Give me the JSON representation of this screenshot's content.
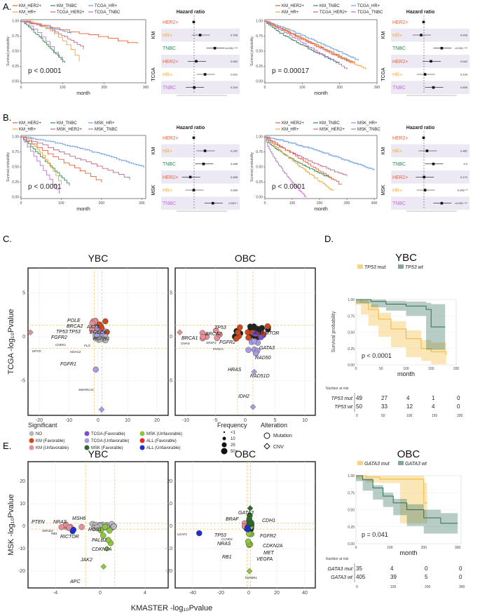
{
  "colors": {
    "HER2": "#e8603a",
    "HR": "#f0a73a",
    "TNBC": "#2e8b57",
    "TCGA_HR": "#6d9ee0",
    "TCGA_HER2": "#c06a8a",
    "TCGA_TNBC": "#c46fd1",
    "NO": "#b8b8b8",
    "KM_Fav": "#cc4a1d",
    "KM_Unfav": "#e58f96",
    "TCGA_Fav": "#7b4fcf",
    "TCGA_Unfav": "#a89be3",
    "MSK_Fav": "#2a6b2a",
    "MSK_Unfav": "#8dc63f",
    "ALL_Fav": "#e02b2b",
    "ALL_Unfav": "#1f2fd6",
    "mut": "#f2b632",
    "wt": "#2e6e58"
  },
  "panels": {
    "A": "A.",
    "B": "B.",
    "C": "C.",
    "D": "D.",
    "E": "E."
  },
  "legendA": [
    "KM_HER2+",
    "KM_TNBC",
    "TCGA_HR+",
    "KM_HR+",
    "TCGA_HER2+",
    "TCGA_TNBC"
  ],
  "legendB": [
    "KM_HER2+",
    "KM_TNBC",
    "MSK_HR+",
    "KM_HR+",
    "MSK_HER2+",
    "MSK_TNBC"
  ],
  "km_common": {
    "xlabel": "month",
    "ylabel": "Survival probability"
  },
  "kmA1": {
    "p": "p < 0.0001",
    "xt": [
      "0",
      "100",
      "200",
      "300"
    ],
    "yt": [
      "0.00",
      "0.25",
      "0.50",
      "0.75",
      "1.00"
    ]
  },
  "kmA2": {
    "p": "p = 0.00017",
    "xt": [
      "0",
      "100",
      "200",
      "300"
    ],
    "yt": [
      "0.00",
      "0.25",
      "0.50",
      "0.75",
      "1.00"
    ]
  },
  "kmB1": {
    "p": "p < 0.0001",
    "xt": [
      "0",
      "100",
      "200",
      "300"
    ],
    "yt": [
      "0.00",
      "0.25",
      "0.50",
      "0.75",
      "1.00"
    ]
  },
  "kmB2": {
    "p": "p < 0.0001",
    "xt": [
      "0",
      "100",
      "200",
      "300",
      "400"
    ],
    "yt": [
      "0.00",
      "0.25",
      "0.50",
      "0.75",
      "1.00"
    ]
  },
  "forest": {
    "title": "Hazard ratio",
    "A1": {
      "g1": "KM",
      "g2": "TCGA",
      "rows": [
        "HER2+",
        "HR+",
        "TNBC",
        "HER2+",
        "HR+",
        "TNBC"
      ],
      "p": [
        "",
        "0.706",
        "<0.001 ***",
        "0.652",
        "0.611",
        "0.224"
      ],
      "est": [
        null,
        0.48,
        0.78,
        0.4,
        0.58,
        0.36
      ]
    },
    "A2": {
      "g1": "KM",
      "g2": "TCGA",
      "rows": [
        "HER2+",
        "HR+",
        "TNBC",
        "HER2+",
        "HR+",
        "TNBC"
      ],
      "p": [
        "",
        "0.439",
        "<0.001 ***",
        "0.642",
        "0.193",
        "0.605"
      ],
      "est": [
        null,
        0.3,
        0.72,
        0.5,
        0.38,
        0.55
      ]
    },
    "B1": {
      "g1": "KM",
      "g2": "MSK",
      "rows": [
        "HER2+",
        "HR+",
        "TNBC",
        "HER2+",
        "HR+",
        "TNBC"
      ],
      "p": [
        "",
        "0.241",
        "0.458",
        "0.459",
        "0.096",
        "0.023 *"
      ],
      "est": [
        null,
        0.58,
        0.55,
        0.28,
        0.35,
        0.74
      ]
    },
    "B2": {
      "g1": "KM",
      "g2": "MSK",
      "rows": [
        "HER2+",
        "HR+",
        "TNBC",
        "HER2+",
        "HR+",
        "TNBC"
      ],
      "p": [
        "",
        "0.481",
        "0.3",
        "0.172",
        "0.009 **",
        "<0.001 ***"
      ],
      "est": [
        null,
        0.42,
        0.55,
        0.36,
        0.38,
        0.72
      ]
    }
  },
  "panelC": {
    "ybc_title": "YBC",
    "obc_title": "OBC",
    "ylabel": "TCGA -log₁₀Pvalue",
    "ybc_xt": [
      "-20",
      "-10",
      "0",
      "10",
      "20"
    ],
    "ybc_yt": [
      "5",
      "0",
      "-5"
    ],
    "obc_xt": [
      "-10",
      "-5",
      "0",
      "5",
      "10"
    ],
    "obc_yt": [
      "5",
      "0",
      "-5"
    ],
    "ybc_genes": [
      "POLE",
      "BRCA2",
      "AKT3",
      "TP53",
      "TP53",
      "ERCC6",
      "FGFR2",
      "FGFR3",
      "CHEK1",
      "FLI1",
      "HDAC2",
      "FGFR1",
      "SMARCA1",
      "DPYD"
    ],
    "obc_genes": [
      "TP53",
      "BRCA2",
      "ATM",
      "MTOR",
      "BRCA1",
      "GNAS",
      "SRSF2",
      "FGFR2",
      "GATA3",
      "FANCA",
      "RAD50",
      "HRAS",
      "RAD51D",
      "IDH2"
    ]
  },
  "panelE": {
    "ybc_title": "YBC",
    "obc_title": "OBC",
    "ylabel": "MSK -log₁₀Pvalue",
    "xlabel": "KMASTER -log₁₀Pvalue",
    "ybc_xt": [
      "-4",
      "0",
      "4"
    ],
    "ybc_yt": [
      "20",
      "10",
      "0",
      "-10",
      "-20"
    ],
    "obc_xt": [
      "-40",
      "-20",
      "0",
      "20",
      "40"
    ],
    "obc_yt": [
      "20",
      "10",
      "0",
      "-10",
      "-20"
    ],
    "ybc_genes": [
      "PTEN",
      "NRAS",
      "MSH6",
      "SMAD4",
      "RB1",
      "RICTOR",
      "ROS1",
      "PALB2",
      "CDKN2A",
      "JAK2",
      "APC"
    ],
    "obc_genes": [
      "GATA3",
      "BRAF",
      "CDH1",
      "U2AF1",
      "TP53",
      "CCND3",
      "FGFR2",
      "NRAS",
      "CDKN2A",
      "MET",
      "RB1",
      "VEGFA",
      "TGFBR1"
    ]
  },
  "legendC": {
    "sig_title": "Significant",
    "sig": [
      "NO",
      "KM (Favorable)",
      "KM (Unfavorable)",
      "TCGA (Favorable)",
      "TCGA (Unfavorable)",
      "MSK (Favorable)",
      "MSK (Unfavorable)",
      "ALL (Favorable)",
      "ALL (Unfavorable)"
    ],
    "freq_title": "Frequency",
    "freq": [
      "<1",
      "10",
      "25",
      "50+"
    ],
    "alt_title": "Alteration",
    "alt": [
      "Mutation",
      "CNV"
    ]
  },
  "panelD": {
    "title": "YBC",
    "mut": "TP53 mut",
    "wt": "TP53 wt",
    "ylabel": "Survival probability",
    "xlabel": "month",
    "p": "p < 0.0001",
    "xt": [
      "0",
      "50",
      "100",
      "150",
      "200"
    ],
    "yt": [
      "1.00",
      "0.75",
      "0.50",
      "0.25",
      "0.00"
    ],
    "risk_title": "Number at risk",
    "risk_mut": [
      "49",
      "27",
      "4",
      "1",
      "0"
    ],
    "risk_wt": [
      "50",
      "33",
      "12",
      "4",
      "0"
    ]
  },
  "panelE2": {
    "title": "OBC",
    "mut": "GATA3 mut",
    "wt": "GATA3 wt",
    "p": "p = 0.041",
    "xlabel": "month",
    "xt": [
      "0",
      "100",
      "200",
      "300"
    ],
    "yt": [
      "1.00",
      "0.75",
      "0.50",
      "0.25",
      "0.00"
    ],
    "risk_title": "Number at risk",
    "risk_mut": [
      "35",
      "4",
      "0",
      "0"
    ],
    "risk_wt": [
      "405",
      "39",
      "5",
      "0"
    ]
  }
}
